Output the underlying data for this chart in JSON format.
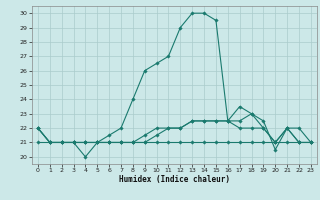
{
  "title": "",
  "xlabel": "Humidex (Indice chaleur)",
  "background_color": "#cce8e8",
  "grid_color": "#aacccc",
  "line_color": "#1a7a6e",
  "xlim": [
    -0.5,
    23.5
  ],
  "ylim": [
    19.5,
    30.5
  ],
  "yticks": [
    20,
    21,
    22,
    23,
    24,
    25,
    26,
    27,
    28,
    29,
    30
  ],
  "xticks": [
    0,
    1,
    2,
    3,
    4,
    5,
    6,
    7,
    8,
    9,
    10,
    11,
    12,
    13,
    14,
    15,
    16,
    17,
    18,
    19,
    20,
    21,
    22,
    23
  ],
  "lines": [
    {
      "x": [
        0,
        1,
        2,
        3,
        4,
        5,
        6,
        7,
        8,
        9,
        10,
        11,
        12,
        13,
        14,
        15,
        16,
        17,
        18,
        19,
        20,
        21,
        22,
        23
      ],
      "y": [
        22,
        21,
        21,
        21,
        20,
        21,
        21.5,
        22,
        24,
        26,
        26.5,
        27,
        29,
        30,
        30,
        29.5,
        22.5,
        23.5,
        23,
        22.5,
        20.5,
        22,
        21,
        21
      ]
    },
    {
      "x": [
        0,
        1,
        2,
        3,
        4,
        5,
        6,
        7,
        8,
        9,
        10,
        11,
        12,
        13,
        14,
        15,
        16,
        17,
        18,
        19,
        20,
        21,
        22,
        23
      ],
      "y": [
        22,
        21,
        21,
        21,
        21,
        21,
        21,
        21,
        21,
        21,
        21.5,
        22,
        22,
        22.5,
        22.5,
        22.5,
        22.5,
        22,
        22,
        22,
        21,
        22,
        22,
        21
      ]
    },
    {
      "x": [
        0,
        1,
        2,
        3,
        4,
        5,
        6,
        7,
        8,
        9,
        10,
        11,
        12,
        13,
        14,
        15,
        16,
        17,
        18,
        19,
        20,
        21,
        22,
        23
      ],
      "y": [
        21,
        21,
        21,
        21,
        21,
        21,
        21,
        21,
        21,
        21,
        21,
        21,
        21,
        21,
        21,
        21,
        21,
        21,
        21,
        21,
        21,
        21,
        21,
        21
      ]
    },
    {
      "x": [
        0,
        1,
        2,
        3,
        4,
        5,
        6,
        7,
        8,
        9,
        10,
        11,
        12,
        13,
        14,
        15,
        16,
        17,
        18,
        19,
        20,
        21,
        22,
        23
      ],
      "y": [
        22,
        21,
        21,
        21,
        21,
        21,
        21,
        21,
        21,
        21.5,
        22,
        22,
        22,
        22.5,
        22.5,
        22.5,
        22.5,
        22.5,
        23,
        22,
        21,
        22,
        21,
        21
      ]
    }
  ]
}
